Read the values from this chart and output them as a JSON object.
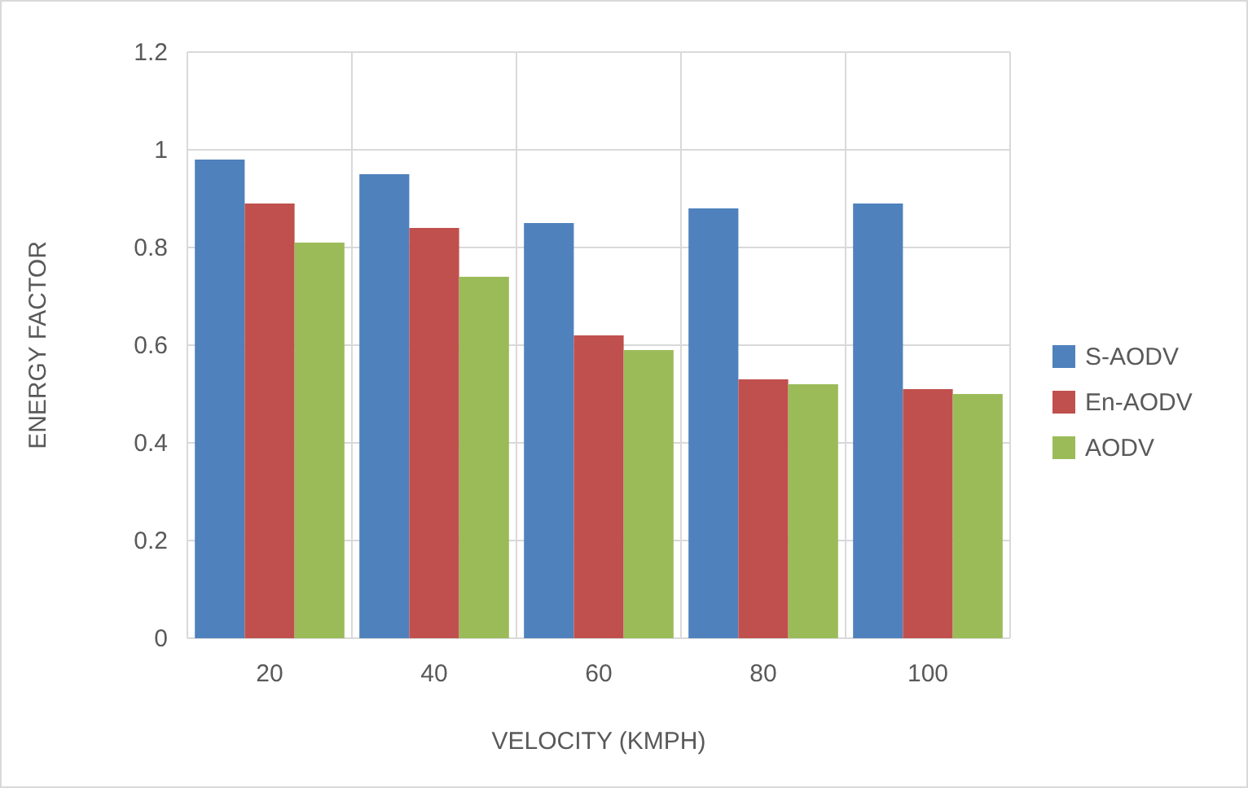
{
  "chart_data": {
    "type": "bar",
    "xlabel": "VELOCITY (KMPH)",
    "ylabel": "ENERGY FACTOR",
    "categories": [
      "20",
      "40",
      "60",
      "80",
      "100"
    ],
    "series": [
      {
        "name": "S-AODV",
        "color": "#4f81bd",
        "values": [
          0.98,
          0.95,
          0.85,
          0.88,
          0.89
        ]
      },
      {
        "name": "En-AODV",
        "color": "#c0504d",
        "values": [
          0.89,
          0.84,
          0.62,
          0.53,
          0.51
        ]
      },
      {
        "name": "AODV",
        "color": "#9bbb59",
        "values": [
          0.81,
          0.74,
          0.59,
          0.52,
          0.5
        ]
      }
    ],
    "ylim": [
      0,
      1.2
    ],
    "yticks": [
      0,
      0.2,
      0.4,
      0.6,
      0.8,
      1,
      1.2
    ],
    "grid": true,
    "legend": "right"
  }
}
